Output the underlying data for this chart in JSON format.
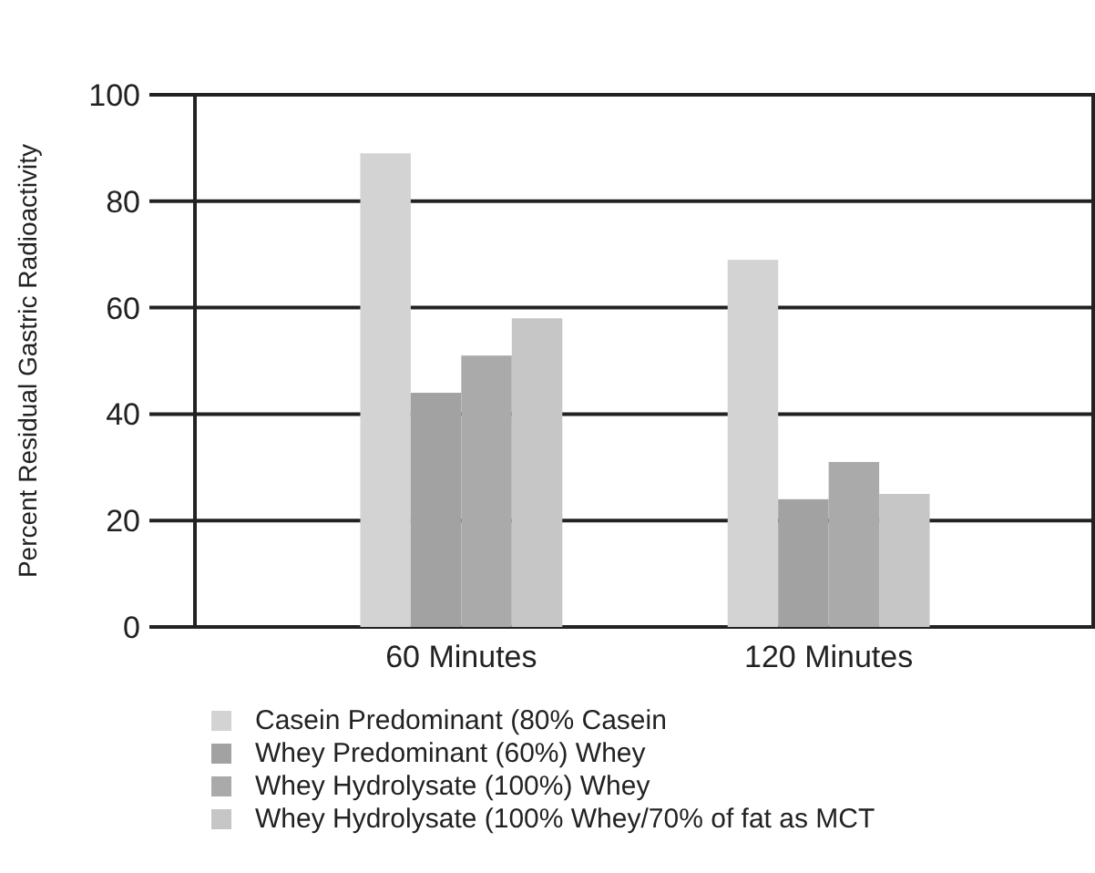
{
  "chart_data": {
    "type": "bar",
    "ylabel": "Percent Residual Gastric Radioactivity",
    "categories": [
      "60 Minutes",
      "120 Minutes"
    ],
    "series": [
      {
        "name": "Casein Predominant (80% Casein",
        "color": "#d3d3d3",
        "values": [
          89,
          69
        ]
      },
      {
        "name": "Whey Predominant (60%) Whey",
        "color": "#a2a2a2",
        "values": [
          44,
          24
        ]
      },
      {
        "name": "Whey Hydrolysate (100%) Whey",
        "color": "#aaaaaa",
        "values": [
          51,
          31
        ]
      },
      {
        "name": "Whey Hydrolysate (100% Whey/70% of fat as MCT",
        "color": "#c6c6c6",
        "values": [
          58,
          25
        ]
      }
    ],
    "ylim": [
      0,
      100
    ],
    "yticks": [
      0,
      20,
      40,
      60,
      80,
      100
    ],
    "grid": "y",
    "legend": "bottom"
  }
}
